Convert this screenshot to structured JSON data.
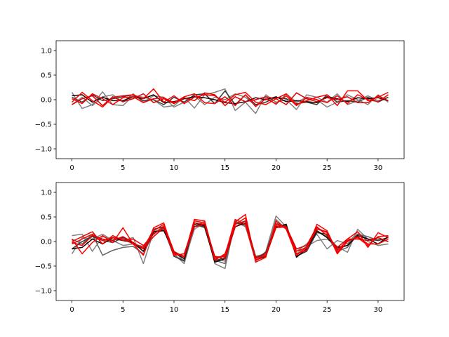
{
  "chart_data": [
    {
      "type": "line",
      "title": "",
      "xlabel": "",
      "ylabel": "",
      "xlim": [
        -1.55,
        32.55
      ],
      "ylim": [
        -1.2,
        1.2
      ],
      "xticks": [
        0,
        5,
        10,
        15,
        20,
        25,
        30
      ],
      "xtick_labels": [
        "0",
        "5",
        "10",
        "15",
        "20",
        "25",
        "30"
      ],
      "yticks": [
        1.0,
        0.5,
        0.0,
        -0.5,
        -1.0
      ],
      "ytick_labels": [
        "1.0",
        "0.5",
        "0.0",
        "−0.5",
        "−1.0"
      ],
      "grid": false,
      "x": [
        0,
        1,
        2,
        3,
        4,
        5,
        6,
        7,
        8,
        9,
        10,
        11,
        12,
        13,
        14,
        15,
        16,
        17,
        18,
        19,
        20,
        21,
        22,
        23,
        24,
        25,
        26,
        27,
        28,
        29,
        30,
        31
      ],
      "series": [
        {
          "color": "#808080",
          "values": [
            0.15,
            -0.18,
            -0.1,
            0.16,
            -0.1,
            -0.12,
            0.08,
            0.05,
            0.0,
            -0.15,
            -0.12,
            0.05,
            -0.17,
            0.1,
            0.15,
            0.22,
            -0.22,
            -0.05,
            -0.28,
            0.1,
            -0.05,
            0.0,
            -0.2,
            0.1,
            0.05,
            -0.05,
            0.12,
            -0.1,
            -0.02,
            0.08,
            -0.02,
            0.05
          ]
        },
        {
          "color": "#808080",
          "values": [
            -0.1,
            0.05,
            -0.12,
            0.06,
            0.1,
            -0.05,
            0.12,
            -0.05,
            0.08,
            0.05,
            -0.15,
            -0.05,
            0.08,
            -0.1,
            0.05,
            0.0,
            0.12,
            0.05,
            -0.12,
            0.06,
            -0.1,
            0.12,
            -0.05,
            0.05,
            0.0,
            -0.15,
            -0.05,
            0.1,
            0.0,
            -0.1,
            0.1,
            -0.05
          ]
        },
        {
          "color": "#3a3a3a",
          "values": [
            0.05,
            -0.05,
            0.1,
            -0.02,
            0.02,
            0.06,
            0.1,
            -0.02,
            0.0,
            -0.1,
            0.05,
            -0.05,
            0.1,
            0.12,
            -0.08,
            0.18,
            -0.1,
            0.1,
            -0.1,
            -0.05,
            0.05,
            0.02,
            -0.08,
            -0.05,
            -0.1,
            0.1,
            -0.05,
            -0.02,
            -0.05,
            0.05,
            -0.05,
            0.05
          ]
        },
        {
          "color": "#1a0000",
          "values": [
            0.08,
            0.1,
            -0.05,
            0.05,
            -0.02,
            -0.02,
            0.06,
            0.02,
            0.1,
            -0.06,
            -0.04,
            0.02,
            0.06,
            0.04,
            0.0,
            -0.06,
            -0.08,
            -0.04,
            0.04,
            0.0,
            0.06,
            -0.04,
            -0.02,
            -0.04,
            -0.06,
            0.06,
            0.02,
            -0.04,
            0.04,
            0.02,
            0.04,
            -0.02
          ]
        },
        {
          "color": "#ff0000",
          "values": [
            -0.05,
            0.15,
            -0.02,
            -0.15,
            0.05,
            0.08,
            0.1,
            0.02,
            0.22,
            -0.05,
            0.08,
            -0.08,
            0.05,
            0.1,
            0.08,
            -0.05,
            0.1,
            0.15,
            -0.05,
            -0.1,
            0.02,
            0.12,
            -0.1,
            -0.02,
            0.05,
            0.1,
            -0.12,
            0.18,
            0.18,
            -0.02,
            0.05,
            0.15
          ]
        },
        {
          "color": "#ff0000",
          "values": [
            0.02,
            -0.08,
            0.12,
            0.02,
            -0.1,
            0.04,
            0.06,
            -0.06,
            0.02,
            0.04,
            -0.06,
            0.06,
            0.12,
            -0.06,
            -0.08,
            0.06,
            -0.12,
            0.1,
            -0.14,
            0.02,
            -0.08,
            0.08,
            -0.12,
            0.04,
            0.0,
            -0.06,
            0.08,
            -0.08,
            0.1,
            0.0,
            -0.04,
            0.1
          ]
        },
        {
          "color": "#e00000",
          "values": [
            -0.1,
            0.02,
            0.08,
            -0.12,
            0.06,
            -0.04,
            0.02,
            0.12,
            -0.06,
            0.02,
            -0.08,
            0.04,
            -0.02,
            0.14,
            0.1,
            -0.12,
            0.06,
            -0.04,
            0.0,
            0.06,
            0.02,
            -0.1,
            0.14,
            0.02,
            -0.04,
            0.04,
            0.0,
            0.06,
            -0.06,
            -0.06,
            0.08,
            -0.02
          ]
        }
      ]
    },
    {
      "type": "line",
      "title": "",
      "xlabel": "",
      "ylabel": "",
      "xlim": [
        -1.55,
        32.55
      ],
      "ylim": [
        -1.2,
        1.2
      ],
      "xticks": [
        0,
        5,
        10,
        15,
        20,
        25,
        30
      ],
      "xtick_labels": [
        "0",
        "5",
        "10",
        "15",
        "20",
        "25",
        "30"
      ],
      "yticks": [
        1.0,
        0.5,
        0.0,
        -0.5,
        -1.0
      ],
      "ytick_labels": [
        "1.0",
        "0.5",
        "0.0",
        "−0.5",
        "−1.0"
      ],
      "grid": false,
      "x": [
        0,
        1,
        2,
        3,
        4,
        5,
        6,
        7,
        8,
        9,
        10,
        11,
        12,
        13,
        14,
        15,
        16,
        17,
        18,
        19,
        20,
        21,
        22,
        23,
        24,
        25,
        26,
        27,
        28,
        29,
        30,
        31
      ],
      "series": [
        {
          "color": "#808080",
          "values": [
            0.12,
            0.15,
            -0.2,
            0.1,
            0.05,
            0.02,
            0.08,
            -0.45,
            0.2,
            0.28,
            -0.2,
            -0.4,
            0.25,
            0.38,
            -0.45,
            -0.55,
            0.42,
            0.32,
            -0.4,
            -0.2,
            0.52,
            0.3,
            -0.25,
            -0.1,
            0.02,
            0.05,
            -0.1,
            -0.22,
            0.25,
            0.05,
            0.05,
            0.0
          ]
        },
        {
          "color": "#808080",
          "values": [
            -0.25,
            0.08,
            0.05,
            0.15,
            0.02,
            -0.08,
            -0.05,
            -0.1,
            0.15,
            0.32,
            -0.25,
            -0.45,
            0.3,
            0.42,
            -0.35,
            -0.4,
            0.4,
            0.3,
            -0.3,
            -0.25,
            0.45,
            0.25,
            -0.2,
            -0.05,
            0.15,
            -0.15,
            0.02,
            -0.05,
            0.2,
            0.0,
            -0.08,
            -0.05
          ]
        },
        {
          "color": "#666666",
          "values": [
            0.05,
            -0.05,
            0.15,
            -0.28,
            -0.18,
            -0.12,
            -0.1,
            -0.25,
            0.18,
            0.25,
            -0.3,
            -0.38,
            0.35,
            0.28,
            -0.38,
            -0.45,
            0.35,
            0.42,
            -0.3,
            -0.28,
            0.38,
            0.28,
            -0.3,
            -0.18,
            0.2,
            0.1,
            -0.2,
            -0.12,
            0.15,
            0.1,
            0.02,
            0.08
          ]
        },
        {
          "color": "#3a3a3a",
          "values": [
            -0.15,
            0.0,
            0.1,
            0.02,
            -0.02,
            0.08,
            -0.05,
            -0.15,
            0.25,
            0.3,
            -0.3,
            -0.4,
            0.35,
            0.3,
            -0.4,
            -0.32,
            0.38,
            0.35,
            -0.35,
            -0.22,
            0.35,
            0.32,
            -0.3,
            -0.2,
            0.18,
            0.15,
            -0.15,
            -0.08,
            0.15,
            0.05,
            0.02,
            0.08
          ]
        },
        {
          "color": "#1a0000",
          "values": [
            -0.15,
            -0.12,
            0.05,
            -0.05,
            0.08,
            0.02,
            -0.02,
            -0.2,
            0.2,
            0.22,
            -0.22,
            -0.35,
            0.38,
            0.32,
            -0.42,
            -0.35,
            0.3,
            0.38,
            -0.38,
            -0.3,
            0.3,
            0.35,
            -0.32,
            -0.15,
            0.22,
            0.08,
            -0.12,
            -0.08,
            0.12,
            0.05,
            -0.05,
            0.1
          ]
        },
        {
          "color": "#ff0000",
          "values": [
            0.05,
            -0.25,
            -0.02,
            0.12,
            -0.02,
            0.28,
            -0.05,
            -0.28,
            0.28,
            0.38,
            -0.25,
            -0.3,
            0.45,
            0.42,
            -0.35,
            -0.28,
            0.45,
            0.35,
            -0.38,
            -0.28,
            0.35,
            0.3,
            -0.25,
            -0.18,
            0.35,
            0.22,
            -0.22,
            0.05,
            0.2,
            -0.12,
            0.18,
            0.08
          ]
        },
        {
          "color": "#ff0000",
          "values": [
            -0.05,
            0.05,
            0.15,
            0.02,
            0.08,
            0.05,
            -0.05,
            -0.12,
            0.22,
            0.35,
            -0.2,
            -0.32,
            0.42,
            0.38,
            -0.32,
            -0.3,
            0.4,
            0.55,
            -0.42,
            -0.32,
            0.42,
            0.25,
            -0.28,
            -0.12,
            0.28,
            0.18,
            -0.18,
            0.02,
            0.08,
            -0.08,
            0.1,
            0.12
          ]
        },
        {
          "color": "#ee0000",
          "values": [
            0.0,
            0.1,
            0.2,
            -0.05,
            0.12,
            0.02,
            0.05,
            -0.08,
            0.15,
            0.3,
            -0.28,
            -0.25,
            0.38,
            0.35,
            -0.38,
            -0.25,
            0.35,
            0.48,
            -0.35,
            -0.25,
            0.32,
            0.28,
            -0.2,
            -0.12,
            0.25,
            0.2,
            -0.25,
            0.0,
            0.1,
            -0.05,
            -0.05,
            0.05
          ]
        },
        {
          "color": "#dd0000",
          "values": [
            -0.02,
            -0.08,
            0.12,
            0.05,
            0.02,
            0.1,
            -0.02,
            -0.15,
            0.1,
            0.28,
            -0.22,
            -0.3,
            0.3,
            0.35,
            -0.3,
            -0.35,
            0.3,
            0.42,
            -0.32,
            -0.3,
            0.28,
            0.3,
            -0.15,
            -0.08,
            0.3,
            0.12,
            -0.12,
            0.05,
            0.05,
            0.02,
            0.08,
            0.0
          ]
        }
      ]
    }
  ]
}
